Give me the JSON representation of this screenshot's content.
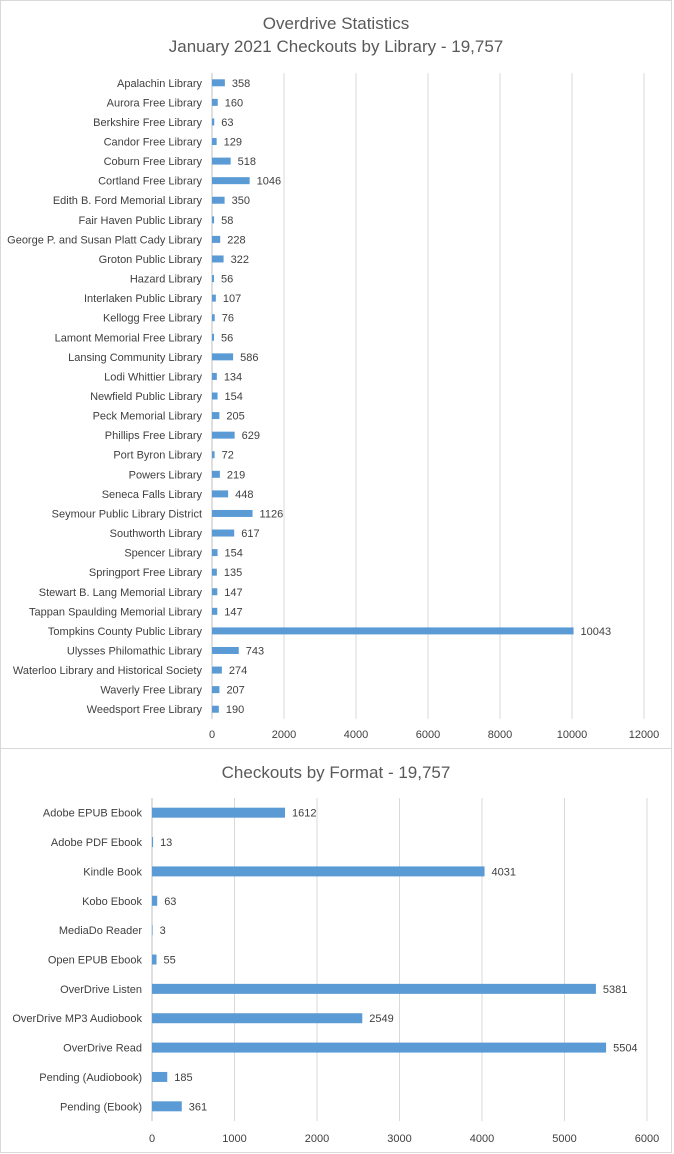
{
  "chart_data": [
    {
      "type": "bar",
      "orientation": "horizontal",
      "title": "Overdrive Statistics",
      "subtitle": "January 2021 Checkouts by Library - 19,757",
      "categories": [
        "Apalachin Library",
        "Aurora Free Library",
        "Berkshire Free Library",
        "Candor Free Library",
        "Coburn Free Library",
        "Cortland Free Library",
        "Edith B. Ford Memorial Library",
        "Fair Haven Public Library",
        "George P. and Susan Platt Cady Library",
        "Groton Public Library",
        "Hazard Library",
        "Interlaken Public Library",
        "Kellogg Free Library",
        "Lamont Memorial Free Library",
        "Lansing Community Library",
        "Lodi Whittier Library",
        "Newfield Public Library",
        "Peck Memorial Library",
        "Phillips Free Library",
        "Port Byron Library",
        "Powers Library",
        "Seneca Falls Library",
        "Seymour Public Library District",
        "Southworth Library",
        "Spencer Library",
        "Springport Free Library",
        "Stewart B. Lang Memorial Library",
        "Tappan Spaulding Memorial Library",
        "Tompkins County Public Library",
        "Ulysses Philomathic Library",
        "Waterloo Library and Historical Society",
        "Waverly Free Library",
        "Weedsport Free Library"
      ],
      "values": [
        358,
        160,
        63,
        129,
        518,
        1046,
        350,
        58,
        228,
        322,
        56,
        107,
        76,
        56,
        586,
        134,
        154,
        205,
        629,
        72,
        219,
        448,
        1126,
        617,
        154,
        135,
        147,
        147,
        10043,
        743,
        274,
        207,
        190
      ],
      "xlim": [
        0,
        12000
      ],
      "xticks": [
        0,
        2000,
        4000,
        6000,
        8000,
        10000,
        12000
      ],
      "grid": true,
      "bar_color": "#5b9bd5"
    },
    {
      "type": "bar",
      "orientation": "horizontal",
      "title": "Checkouts by Format - 19,757",
      "categories": [
        "Adobe EPUB Ebook",
        "Adobe PDF Ebook",
        "Kindle Book",
        "Kobo Ebook",
        "MediaDo Reader",
        "Open EPUB Ebook",
        "OverDrive Listen",
        "OverDrive MP3 Audiobook",
        "OverDrive Read",
        "Pending (Audiobook)",
        "Pending (Ebook)"
      ],
      "values": [
        1612,
        13,
        4031,
        63,
        3,
        55,
        5381,
        2549,
        5504,
        185,
        361
      ],
      "xlim": [
        0,
        6000
      ],
      "xticks": [
        0,
        1000,
        2000,
        3000,
        4000,
        5000,
        6000
      ],
      "grid": true,
      "bar_color": "#5b9bd5"
    }
  ]
}
